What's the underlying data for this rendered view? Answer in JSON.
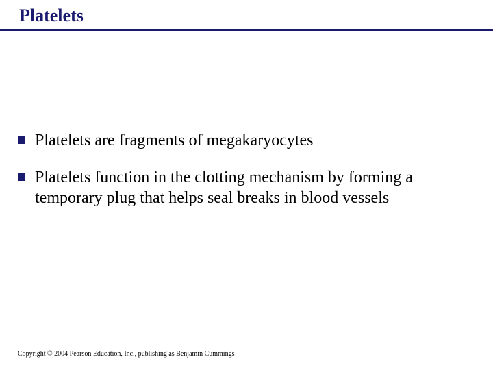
{
  "slide": {
    "title": "Platelets",
    "title_color": "#1a1a6e",
    "title_fontsize": 26,
    "title_fontweight": "bold",
    "divider_color": "#1a1a6e",
    "divider_thickness": 3,
    "background_color": "#ffffff"
  },
  "bullets": [
    {
      "text": "Platelets are fragments of megakaryocytes"
    },
    {
      "text": "Platelets function in the clotting mechanism by forming a temporary plug that helps seal breaks in blood vessels"
    }
  ],
  "bullet_style": {
    "marker_color": "#1a1a6e",
    "marker_size": 11,
    "text_fontsize": 24,
    "text_color": "#000000",
    "font_family": "Times New Roman"
  },
  "footer": {
    "copyright": "Copyright © 2004 Pearson Education, Inc., publishing as Benjamin Cummings",
    "fontsize": 10,
    "color": "#000000"
  }
}
